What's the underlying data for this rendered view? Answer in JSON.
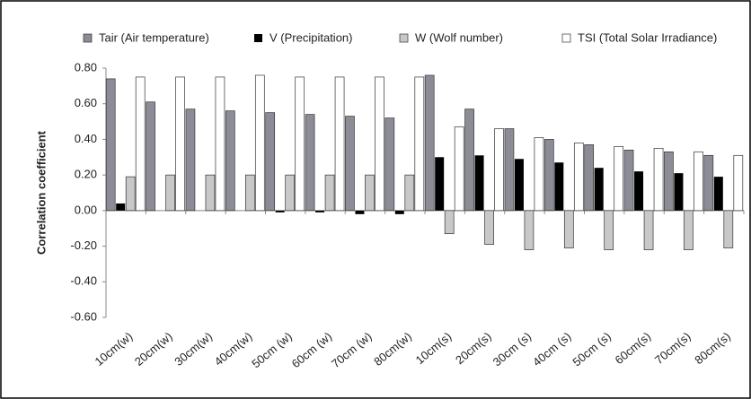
{
  "chart_data": {
    "type": "bar",
    "y_label": "Correlation coefficient",
    "categories": [
      "10cm(w)",
      "20cm(w)",
      "30cm(w)",
      "40cm(w)",
      "50cm (w)",
      "60cm (w)",
      "70cm (w)",
      "80cm(w)",
      "10cm(s)",
      "20cm(s)",
      "30cm (s)",
      "40cm (s)",
      "50cm (s)",
      "60cm(s)",
      "70cm(s)",
      "80cm(s)"
    ],
    "series": [
      {
        "name": "Tair (Air temperature)",
        "color": "#8c8c96",
        "values": [
          0.74,
          0.61,
          0.57,
          0.56,
          0.55,
          0.54,
          0.53,
          0.52,
          0.76,
          0.57,
          0.46,
          0.4,
          0.37,
          0.34,
          0.33,
          0.31
        ]
      },
      {
        "name": "V (Precipitation)",
        "color": "#000000",
        "values": [
          0.04,
          0.0,
          0.0,
          0.0,
          -0.01,
          -0.01,
          -0.02,
          -0.02,
          0.3,
          0.31,
          0.29,
          0.27,
          0.24,
          0.22,
          0.21,
          0.19
        ]
      },
      {
        "name": "W (Wolf number)",
        "color": "#c8c8c8",
        "values": [
          0.19,
          0.2,
          0.2,
          0.2,
          0.2,
          0.2,
          0.2,
          0.2,
          -0.13,
          -0.19,
          -0.22,
          -0.21,
          -0.22,
          -0.22,
          -0.22,
          -0.21
        ]
      },
      {
        "name": "TSI (Total Solar Irradiance)",
        "color": "#ffffff",
        "values": [
          0.75,
          0.75,
          0.75,
          0.76,
          0.75,
          0.75,
          0.75,
          0.75,
          0.47,
          0.46,
          0.41,
          0.38,
          0.36,
          0.35,
          0.33,
          0.31
        ]
      }
    ],
    "ylim": [
      -0.6,
      0.8
    ],
    "yticks": [
      {
        "value": 0.8,
        "label": "0.80"
      },
      {
        "value": 0.6,
        "label": "0.60"
      },
      {
        "value": 0.4,
        "label": "0.40"
      },
      {
        "value": 0.2,
        "label": "0.20"
      },
      {
        "value": 0,
        "label": "0.00"
      },
      {
        "value": -0.2,
        "label": "-0.20"
      },
      {
        "value": -0.4,
        "label": "-0.40"
      },
      {
        "value": -0.6,
        "label": "-0.60"
      }
    ],
    "grid": false,
    "legend": "top"
  }
}
